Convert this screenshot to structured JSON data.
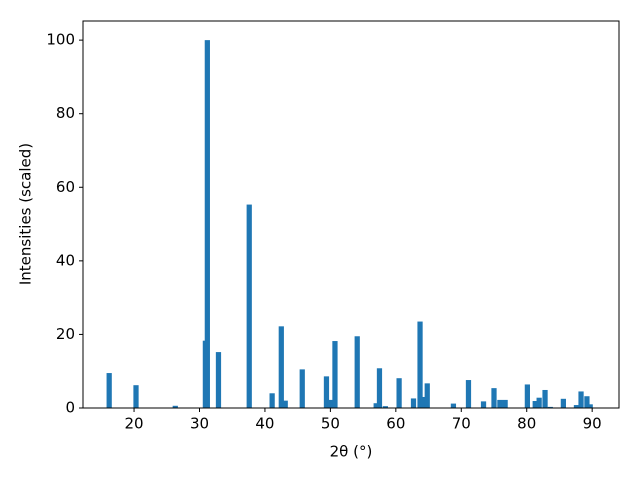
{
  "chart_data": {
    "type": "bar",
    "x": [
      16.2,
      20.3,
      26.3,
      30.9,
      31.2,
      32.9,
      37.6,
      41.1,
      42.5,
      43.1,
      45.7,
      49.4,
      50.0,
      50.7,
      54.1,
      57.0,
      57.5,
      58.4,
      60.5,
      62.7,
      63.7,
      64.2,
      64.8,
      68.8,
      71.1,
      73.4,
      75.0,
      75.9,
      76.7,
      80.1,
      81.3,
      81.9,
      82.8,
      83.6,
      85.6,
      87.6,
      88.3,
      89.2,
      89.7
    ],
    "values": [
      9.5,
      6.2,
      0.6,
      18.3,
      100,
      15.2,
      55.3,
      4.0,
      22.2,
      2.0,
      10.5,
      8.6,
      2.2,
      18.2,
      19.5,
      1.3,
      10.8,
      0.5,
      8.1,
      2.6,
      23.5,
      3.0,
      6.7,
      1.2,
      7.6,
      1.8,
      5.4,
      2.2,
      2.2,
      6.4,
      1.9,
      2.8,
      4.9,
      0.3,
      2.5,
      0.8,
      4.5,
      3.2,
      1.0
    ],
    "color": "#1f77b4",
    "x_label": "2θ (°)",
    "y_label": "Intensities (scaled)",
    "xlim": [
      12.2,
      94.1
    ],
    "xticks": [
      20,
      30,
      40,
      50,
      60,
      70,
      80,
      90
    ],
    "ylim": [
      0,
      105.2
    ],
    "yticks": [
      0,
      20,
      40,
      60,
      80,
      100
    ],
    "grid": false
  }
}
